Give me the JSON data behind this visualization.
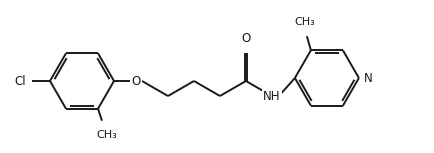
{
  "bg_color": "#ffffff",
  "line_color": "#1a1a1a",
  "line_width": 1.4,
  "font_size": 8.5,
  "fig_width": 4.34,
  "fig_height": 1.53,
  "dpi": 100,
  "xlim": [
    0,
    4.34
  ],
  "ylim": [
    0,
    1.53
  ]
}
